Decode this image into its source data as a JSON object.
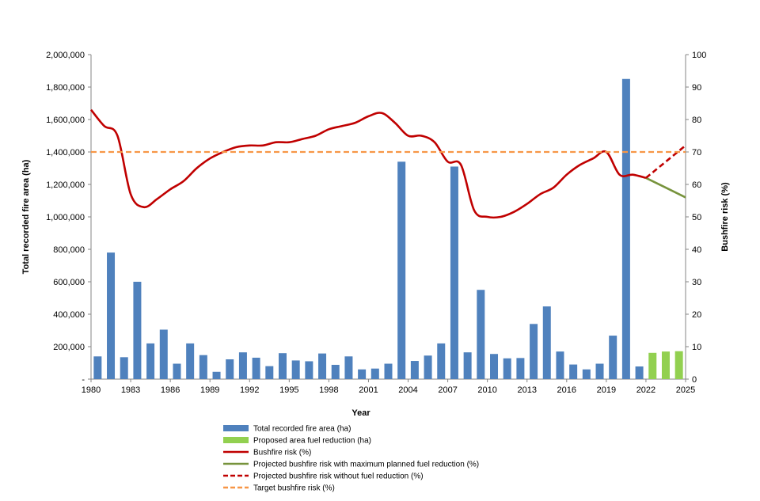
{
  "chart_data": {
    "type": "bar",
    "title": "",
    "xlabel": "Year",
    "ylabel_left": "Total recorded fire area (ha)",
    "ylabel_right": "Bushfire risk (%)",
    "y_left_range": [
      0,
      2000000
    ],
    "y_right_range": [
      0,
      100
    ],
    "y_left_ticks": [
      "-",
      "200,000",
      "400,000",
      "600,000",
      "800,000",
      "1,000,000",
      "1,200,000",
      "1,400,000",
      "1,600,000",
      "1,800,000",
      "2,000,000"
    ],
    "y_right_ticks": [
      "0",
      "10",
      "20",
      "30",
      "40",
      "50",
      "60",
      "70",
      "80",
      "90",
      "100"
    ],
    "x_range": [
      1980,
      2025
    ],
    "x_ticks": [
      "1980",
      "1983",
      "1986",
      "1989",
      "1992",
      "1995",
      "1998",
      "2001",
      "2004",
      "2007",
      "2010",
      "2013",
      "2016",
      "2019",
      "2022",
      "2025"
    ],
    "grid": false,
    "legend_position": "bottom",
    "series": [
      {
        "name": "Total recorded fire area (ha)",
        "kind": "bar",
        "axis": "left",
        "color": "#4f81bd",
        "x": [
          1980,
          1981,
          1982,
          1983,
          1984,
          1985,
          1986,
          1987,
          1988,
          1989,
          1990,
          1991,
          1992,
          1993,
          1994,
          1995,
          1996,
          1997,
          1998,
          1999,
          2000,
          2001,
          2002,
          2003,
          2004,
          2005,
          2006,
          2007,
          2008,
          2009,
          2010,
          2011,
          2012,
          2013,
          2014,
          2015,
          2016,
          2017,
          2018,
          2019,
          2020,
          2021
        ],
        "values": [
          140000,
          780000,
          135000,
          600000,
          220000,
          305000,
          95000,
          220000,
          148000,
          45000,
          122000,
          165000,
          132000,
          80000,
          160000,
          115000,
          110000,
          158000,
          88000,
          140000,
          60000,
          65000,
          95000,
          1340000,
          112000,
          145000,
          220000,
          1310000,
          165000,
          550000,
          155000,
          128000,
          130000,
          340000,
          448000,
          170000,
          90000,
          60000,
          95000,
          268000,
          1850000,
          78000
        ]
      },
      {
        "name": "Proposed area fuel reduction (ha)",
        "kind": "bar",
        "axis": "left",
        "color": "#92d050",
        "x": [
          2022,
          2023,
          2024
        ],
        "values": [
          162000,
          170000,
          172000
        ]
      },
      {
        "name": "Bushfire risk (%)",
        "kind": "line",
        "axis": "right",
        "color": "#c00000",
        "dash": "solid",
        "x": [
          1980,
          1981,
          1982,
          1983,
          1984,
          1985,
          1986,
          1987,
          1988,
          1989,
          1990,
          1991,
          1992,
          1993,
          1994,
          1995,
          1996,
          1997,
          1998,
          1999,
          2000,
          2001,
          2002,
          2003,
          2004,
          2005,
          2006,
          2007,
          2008,
          2009,
          2010,
          2011,
          2012,
          2013,
          2014,
          2015,
          2016,
          2017,
          2018,
          2019,
          2020,
          2021,
          2022
        ],
        "values": [
          83,
          78,
          75,
          57,
          53,
          55.5,
          58.5,
          61,
          65,
          68,
          70,
          71.5,
          72,
          72,
          73,
          73,
          74,
          75,
          77,
          78,
          79,
          81,
          82,
          79,
          75,
          75,
          73,
          67,
          66,
          52,
          50,
          50,
          51.5,
          54,
          57,
          59,
          63,
          66,
          68,
          70,
          63,
          63,
          62
        ]
      },
      {
        "name": "Projected bushfire risk with maximum planned fuel reduction (%)",
        "kind": "line",
        "axis": "right",
        "color": "#77933c",
        "dash": "solid",
        "x": [
          2022,
          2025
        ],
        "values": [
          62,
          56
        ]
      },
      {
        "name": "Projected bushfire risk without fuel reduction (%)",
        "kind": "line",
        "axis": "right",
        "color": "#c00000",
        "dash": "dashed",
        "x": [
          2022,
          2025
        ],
        "values": [
          62,
          72
        ]
      },
      {
        "name": "Target bushfire risk (%)",
        "kind": "line",
        "axis": "right",
        "color": "#f79646",
        "dash": "dashed",
        "x": [
          1980,
          2025
        ],
        "values": [
          70,
          70
        ]
      }
    ]
  }
}
